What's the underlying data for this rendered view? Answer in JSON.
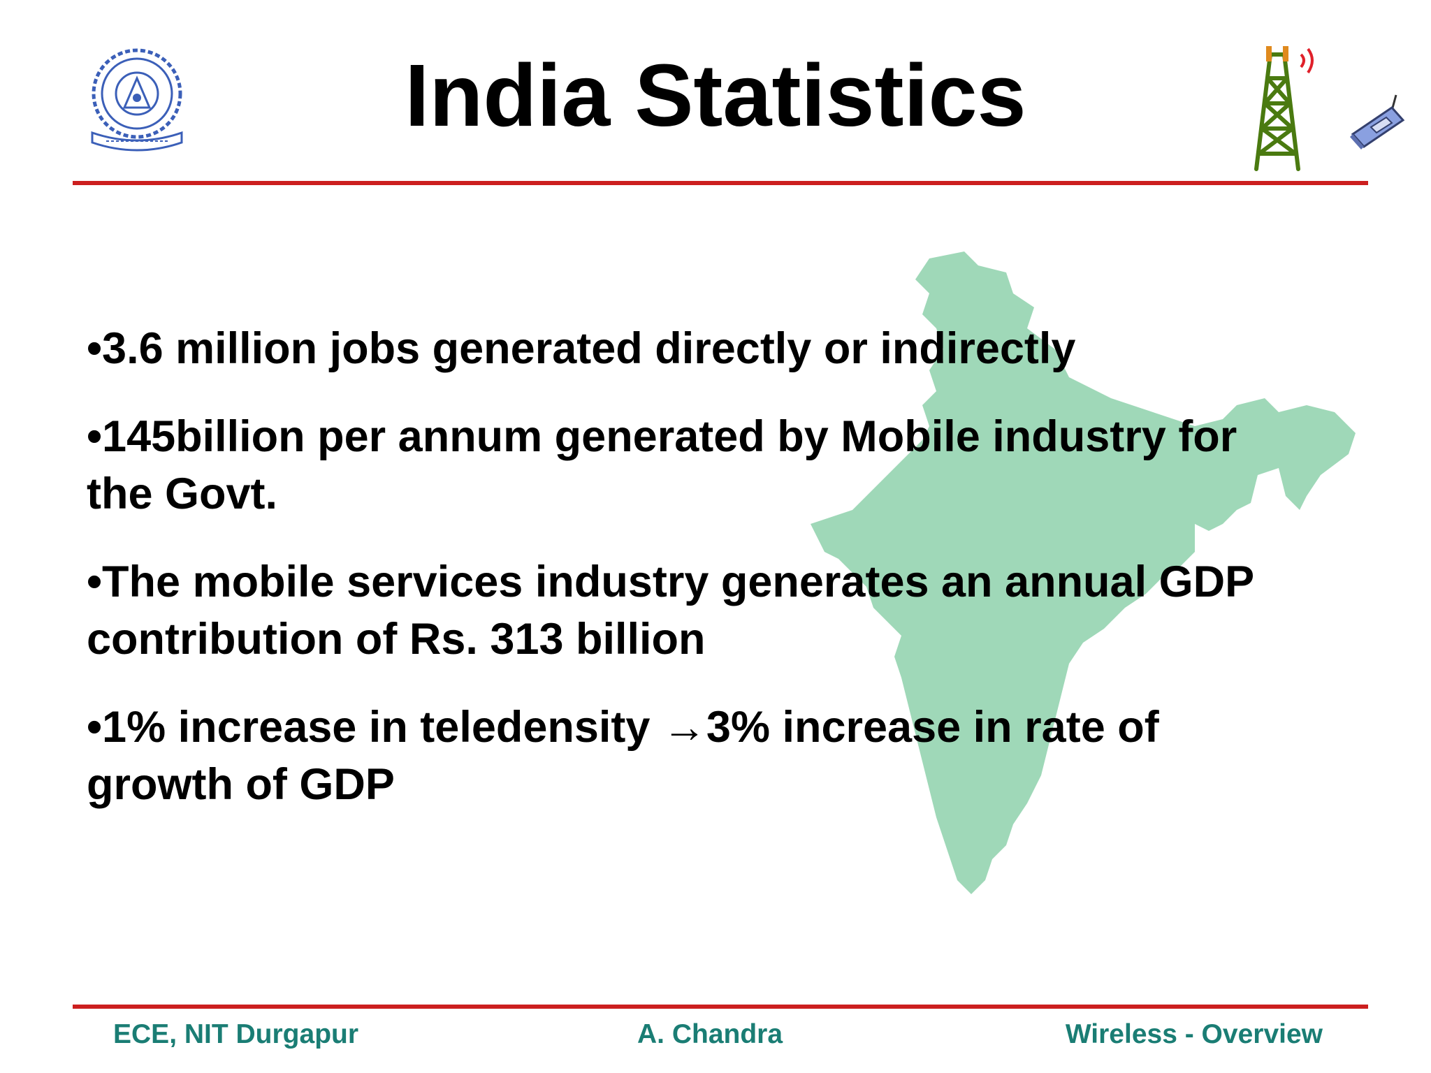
{
  "slide": {
    "title": "India Statistics",
    "bullets": [
      "•3.6 million jobs generated directly or indirectly",
      "•145billion per annum generated by Mobile industry for the Govt.",
      "•The mobile services industry generates an annual GDP contribution of Rs. 313 billion",
      "•1% increase in teledensity →3% increase in rate of growth of GDP"
    ]
  },
  "footer": {
    "left": "ECE, NIT Durgapur",
    "center": "A. Chandra",
    "right": "Wireless - Overview"
  },
  "colors": {
    "rule": "#cc1f1f",
    "footer_text": "#1a7d74",
    "map_fill": "#9fd8b8",
    "logo_blue": "#3b5fb8",
    "tower_green": "#4a7a10"
  },
  "icons": {
    "logo": "nit-durgapur-logo",
    "tower": "radio-tower-icon",
    "phone": "mobile-phone-icon",
    "map": "india-map-silhouette"
  }
}
